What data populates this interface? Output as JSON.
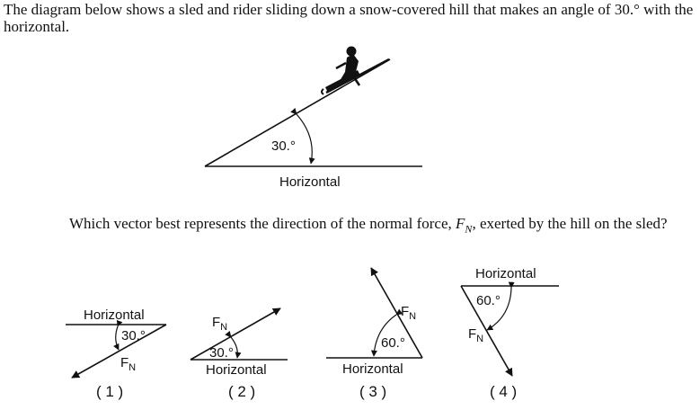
{
  "question": {
    "intro": "The diagram below shows a sled and rider sliding down a snow-covered hill that makes an angle of 30.° with the horizontal.",
    "prompt_before": "Which vector best represents the direction of the normal force, ",
    "force_symbol": "F",
    "force_subscript": "N",
    "prompt_after": ", exerted by the hill on the sled?"
  },
  "hill": {
    "angle_label": "30.°",
    "base_label": "Horizontal"
  },
  "choices": [
    {
      "number": "( 1 )",
      "horizontal_label": "Horizontal",
      "angle_label": "30.°",
      "force_symbol": "F",
      "force_subscript": "N"
    },
    {
      "number": "( 2 )",
      "horizontal_label": "Horizontal",
      "angle_label": "30.°",
      "force_symbol": "F",
      "force_subscript": "N"
    },
    {
      "number": "( 3 )",
      "horizontal_label": "Horizontal",
      "angle_label": "60.°",
      "force_symbol": "F",
      "force_subscript": "N"
    },
    {
      "number": "( 4 )",
      "horizontal_label": "Horizontal",
      "angle_label": "60.°",
      "force_symbol": "F",
      "force_subscript": "N"
    }
  ]
}
